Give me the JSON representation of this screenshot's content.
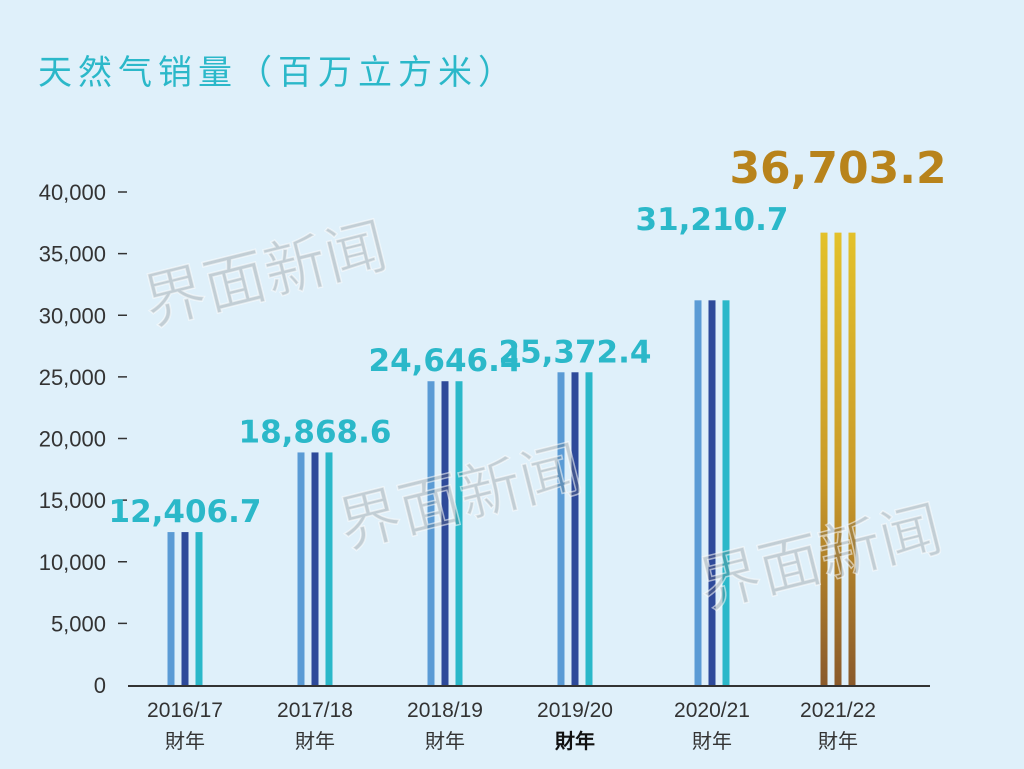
{
  "chart_data": {
    "type": "bar",
    "title": "天然气销量（百万立方米）",
    "categories": [
      "2016/17",
      "2017/18",
      "2018/19",
      "2019/20",
      "2020/21",
      "2021/22"
    ],
    "category_sublabel": "財年",
    "values": [
      12406.7,
      18868.6,
      24646.4,
      25372.4,
      31210.7,
      36703.2
    ],
    "data_labels": [
      "12,406.7",
      "18,868.6",
      "24,646.4",
      "25,372.4",
      "31,210.7",
      "36,703.2"
    ],
    "y_ticks": [
      "0",
      "5,000",
      "10,000",
      "15,000",
      "20,000",
      "25,000",
      "30,000",
      "35,000",
      "40,000"
    ],
    "ylim": [
      0,
      40000
    ],
    "grid": false,
    "legend": "none",
    "highlight_index": 5,
    "bold_sublabel_index": 3,
    "colors": {
      "title": "#2bb8c9",
      "label": "#2bb8c9",
      "label_highlight": "#b8831b",
      "stripe_1": "#5b9bd5",
      "stripe_2": "#2e4a9a",
      "stripe_3": "#2bb8c9",
      "highlight_stripe": "#c99a2a",
      "axis": "#333333"
    }
  },
  "watermark": "界面新闻"
}
